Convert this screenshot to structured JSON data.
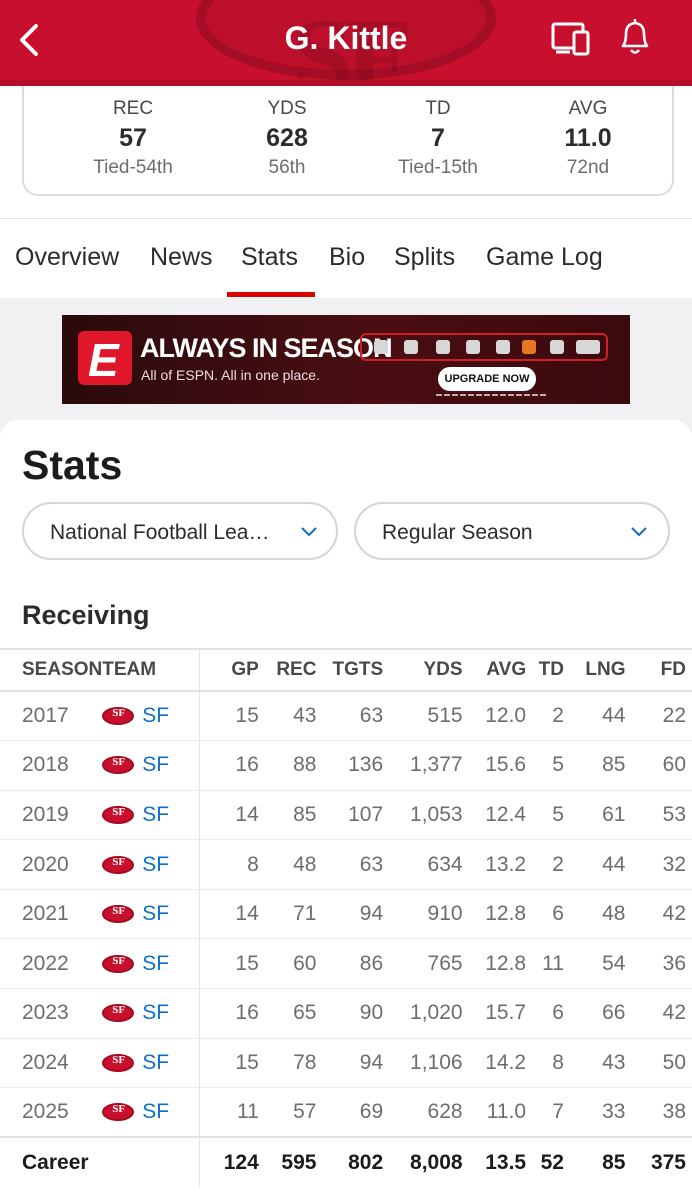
{
  "header": {
    "title": "G. Kittle"
  },
  "summary": [
    {
      "label": "REC",
      "value": "57",
      "rank": "Tied-54th"
    },
    {
      "label": "YDS",
      "value": "628",
      "rank": "56th"
    },
    {
      "label": "TD",
      "value": "7",
      "rank": "Tied-15th"
    },
    {
      "label": "AVG",
      "value": "11.0",
      "rank": "72nd"
    }
  ],
  "tabs": [
    "Overview",
    "News",
    "Stats",
    "Bio",
    "Splits",
    "Game Log"
  ],
  "active_tab": "Stats",
  "ad": {
    "headline": "ALWAYS IN SEASON",
    "subline": "All of ESPN. All in one place.",
    "cta": "UPGRADE NOW"
  },
  "stats": {
    "title": "Stats",
    "league_filter": "National Football Lea…",
    "season_filter": "Regular Season",
    "section": "Receiving",
    "columns": [
      "SEASON",
      "TEAM",
      "GP",
      "REC",
      "TGTS",
      "YDS",
      "AVG",
      "TD",
      "LNG",
      "FD"
    ],
    "rows": [
      [
        "2017",
        "SF",
        "15",
        "43",
        "63",
        "515",
        "12.0",
        "2",
        "44",
        "22"
      ],
      [
        "2018",
        "SF",
        "16",
        "88",
        "136",
        "1,377",
        "15.6",
        "5",
        "85",
        "60"
      ],
      [
        "2019",
        "SF",
        "14",
        "85",
        "107",
        "1,053",
        "12.4",
        "5",
        "61",
        "53"
      ],
      [
        "2020",
        "SF",
        "8",
        "48",
        "63",
        "634",
        "13.2",
        "2",
        "44",
        "32"
      ],
      [
        "2021",
        "SF",
        "14",
        "71",
        "94",
        "910",
        "12.8",
        "6",
        "48",
        "42"
      ],
      [
        "2022",
        "SF",
        "15",
        "60",
        "86",
        "765",
        "12.8",
        "11",
        "54",
        "36"
      ],
      [
        "2023",
        "SF",
        "16",
        "65",
        "90",
        "1,020",
        "15.7",
        "6",
        "66",
        "42"
      ],
      [
        "2024",
        "SF",
        "15",
        "78",
        "94",
        "1,106",
        "14.2",
        "8",
        "43",
        "50"
      ],
      [
        "2025",
        "SF",
        "11",
        "57",
        "69",
        "628",
        "11.0",
        "7",
        "33",
        "38"
      ]
    ],
    "career": [
      "Career",
      "",
      "124",
      "595",
      "802",
      "8,008",
      "13.5",
      "52",
      "85",
      "375"
    ]
  },
  "colors": {
    "brand": "#c8102e",
    "link": "#0e6fc6",
    "tab_active": "#dd0000"
  },
  "icons": [
    "back-chevron-icon",
    "cast-device-icon",
    "bell-icon",
    "chevron-down-icon",
    "team-logo-icon"
  ]
}
